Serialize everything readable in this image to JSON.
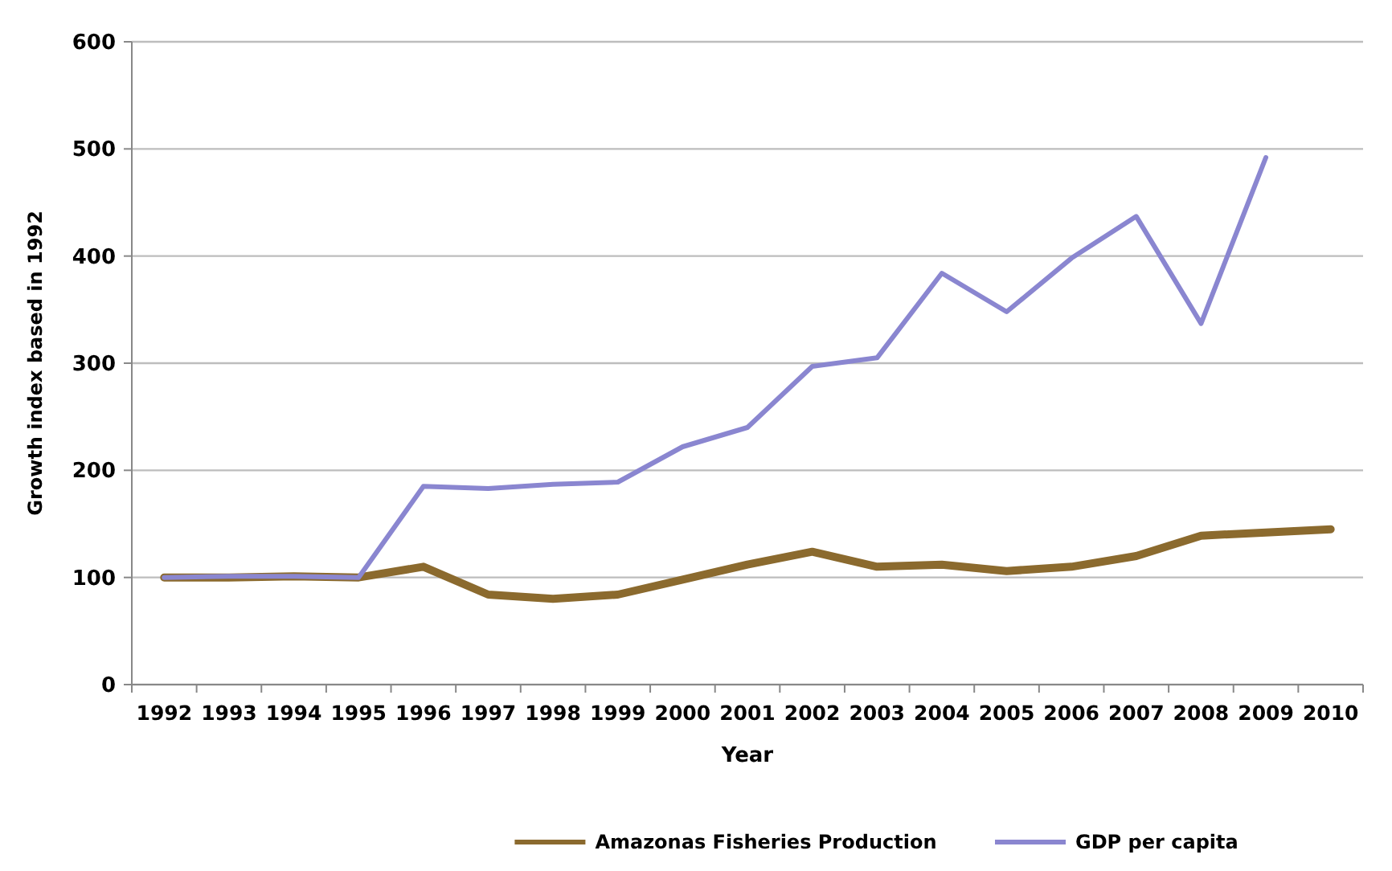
{
  "chart_data": {
    "type": "line",
    "xlabel": "Year",
    "ylabel": "Growth index based in 1992",
    "categories": [
      "1992",
      "1993",
      "1994",
      "1995",
      "1996",
      "1997",
      "1998",
      "1999",
      "2000",
      "2001",
      "2002",
      "2003",
      "2004",
      "2005",
      "2006",
      "2007",
      "2008",
      "2009",
      "2010"
    ],
    "series": [
      {
        "name": "Amazonas Fisheries Production",
        "color": "#8b6a2e",
        "values": [
          100,
          100,
          101,
          100,
          110,
          84,
          80,
          84,
          98,
          112,
          124,
          110,
          112,
          106,
          110,
          120,
          139,
          142,
          145
        ]
      },
      {
        "name": "GDP per capita",
        "color": "#8a86d0",
        "values": [
          100,
          101,
          101,
          100,
          185,
          183,
          187,
          189,
          222,
          240,
          297,
          305,
          384,
          348,
          398,
          437,
          337,
          492,
          null
        ]
      }
    ],
    "ylim": [
      0,
      600
    ],
    "yticks": [
      0,
      100,
      200,
      300,
      400,
      500,
      600
    ],
    "grid": "y",
    "legend": "bottom",
    "marker": "none",
    "line_style": "solid"
  }
}
